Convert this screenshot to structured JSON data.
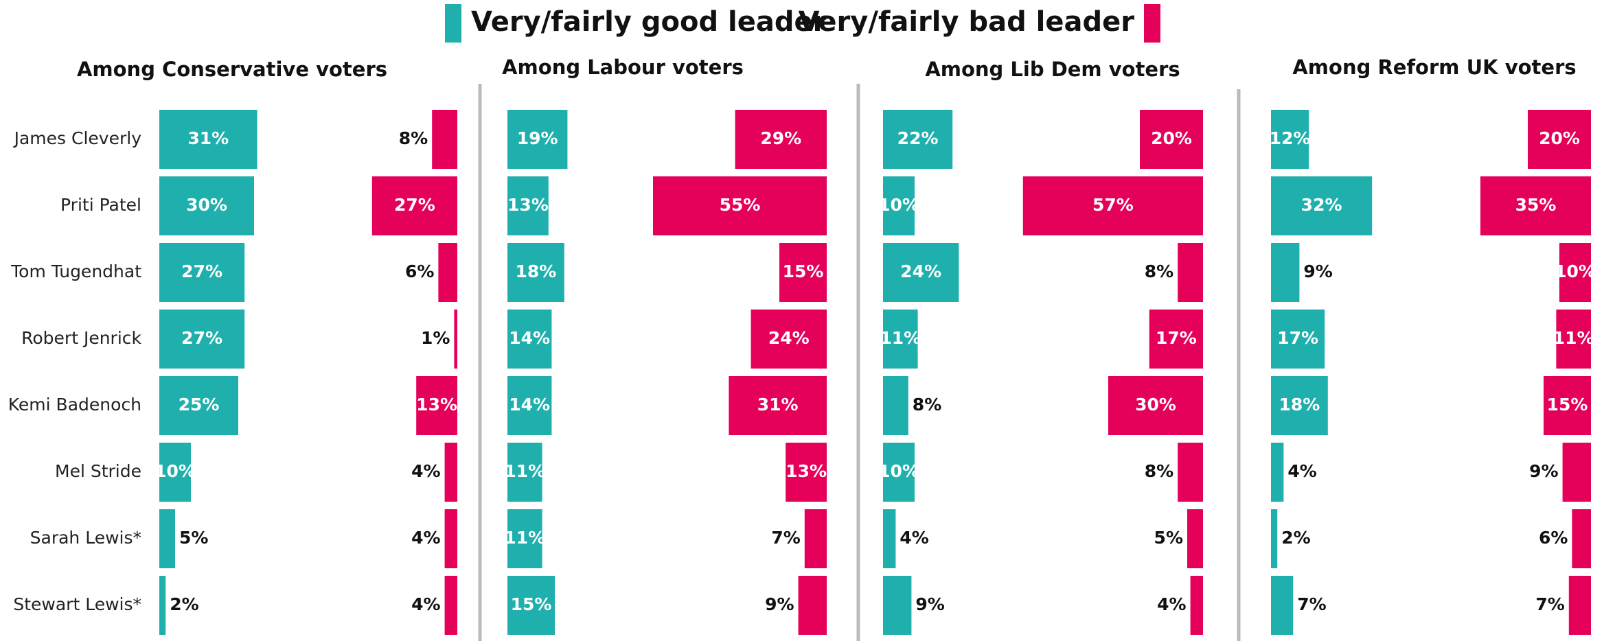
{
  "chart_data": [
    {
      "type": "bar",
      "title": "Among Conservative voters",
      "categories": [
        "James Cleverly",
        "Priti Patel",
        "Tom Tugendhat",
        "Robert Jenrick",
        "Kemi Badenoch",
        "Mel Stride",
        "Sarah Lewis*",
        "Stewart Lewis*"
      ],
      "series": [
        {
          "name": "Very/fairly good leader",
          "color": "#1fb0ad",
          "values": [
            31,
            30,
            27,
            27,
            25,
            10,
            5,
            2
          ],
          "value_labels": [
            "31%",
            "30%",
            "27%",
            "27%",
            "25%",
            "10%",
            "5%",
            "2%"
          ]
        },
        {
          "name": "Very/fairly bad leader",
          "color": "#e5005a",
          "values": [
            8,
            27,
            6,
            1,
            13,
            4,
            4,
            4
          ],
          "value_labels": [
            "8%",
            "27%",
            "6%",
            "1%",
            "13%",
            "4%",
            "4%",
            "4%"
          ]
        }
      ]
    },
    {
      "type": "bar",
      "title": "Among Labour voters",
      "series": [
        {
          "color": "#1fb0ad",
          "values": [
            19,
            13,
            18,
            14,
            14,
            11,
            11,
            15
          ],
          "value_labels": [
            "19%",
            "13%",
            "18%",
            "14%",
            "14%",
            "11%",
            "11%",
            "15%"
          ]
        },
        {
          "color": "#e5005a",
          "values": [
            29,
            55,
            15,
            24,
            31,
            13,
            7,
            9
          ],
          "value_labels": [
            "29%",
            "55%",
            "15%",
            "24%",
            "31%",
            "13%",
            "7%",
            "9%"
          ]
        }
      ]
    },
    {
      "type": "bar",
      "title": "Among Lib Dem voters",
      "series": [
        {
          "color": "#1fb0ad",
          "values": [
            22,
            10,
            24,
            11,
            8,
            10,
            4,
            9
          ],
          "value_labels": [
            "22%",
            "10%",
            "24%",
            "11%",
            "8%",
            "10%",
            "4%",
            "9%"
          ]
        },
        {
          "color": "#e5005a",
          "values": [
            20,
            57,
            8,
            17,
            30,
            8,
            5,
            4
          ],
          "value_labels": [
            "20%",
            "57%",
            "8%",
            "17%",
            "30%",
            "8%",
            "5%",
            "4%"
          ]
        }
      ]
    },
    {
      "type": "bar",
      "title": "Among Reform UK voters",
      "series": [
        {
          "color": "#1fb0ad",
          "values": [
            12,
            32,
            9,
            17,
            18,
            4,
            2,
            7
          ],
          "value_labels": [
            "12%",
            "32%",
            "9%",
            "17%",
            "18%",
            "4%",
            "2%",
            "7%"
          ]
        },
        {
          "color": "#e5005a",
          "values": [
            20,
            35,
            10,
            11,
            15,
            9,
            6,
            7
          ],
          "value_labels": [
            "20%",
            "35%",
            "10%",
            "11%",
            "15%",
            "9%",
            "6%",
            "7%"
          ]
        }
      ]
    }
  ]
}
